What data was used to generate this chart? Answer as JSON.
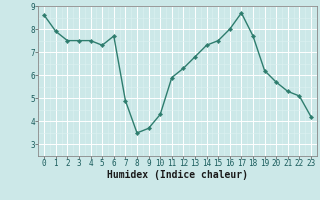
{
  "xlabel": "Humidex (Indice chaleur)",
  "ylabel": "",
  "x_values": [
    0,
    1,
    2,
    3,
    4,
    5,
    6,
    7,
    8,
    9,
    10,
    11,
    12,
    13,
    14,
    15,
    16,
    17,
    18,
    19,
    20,
    21,
    22,
    23
  ],
  "y_values": [
    8.6,
    7.9,
    7.5,
    7.5,
    7.5,
    7.3,
    7.7,
    4.9,
    3.5,
    3.7,
    4.3,
    5.9,
    6.3,
    6.8,
    7.3,
    7.5,
    8.0,
    8.7,
    7.7,
    6.2,
    5.7,
    5.3,
    5.1,
    4.2
  ],
  "line_color": "#2e7d6e",
  "marker": "D",
  "marker_size": 2.2,
  "line_width": 1.0,
  "bg_color": "#cce8e8",
  "grid_color": "#ffffff",
  "ylim": [
    3,
    9
  ],
  "xlim": [
    -0.5,
    23.5
  ],
  "yticks": [
    3,
    4,
    5,
    6,
    7,
    8,
    9
  ],
  "xticks": [
    0,
    1,
    2,
    3,
    4,
    5,
    6,
    7,
    8,
    9,
    10,
    11,
    12,
    13,
    14,
    15,
    16,
    17,
    18,
    19,
    20,
    21,
    22,
    23
  ],
  "tick_fontsize": 5.5,
  "label_fontsize": 7.0,
  "spine_color": "#888888"
}
